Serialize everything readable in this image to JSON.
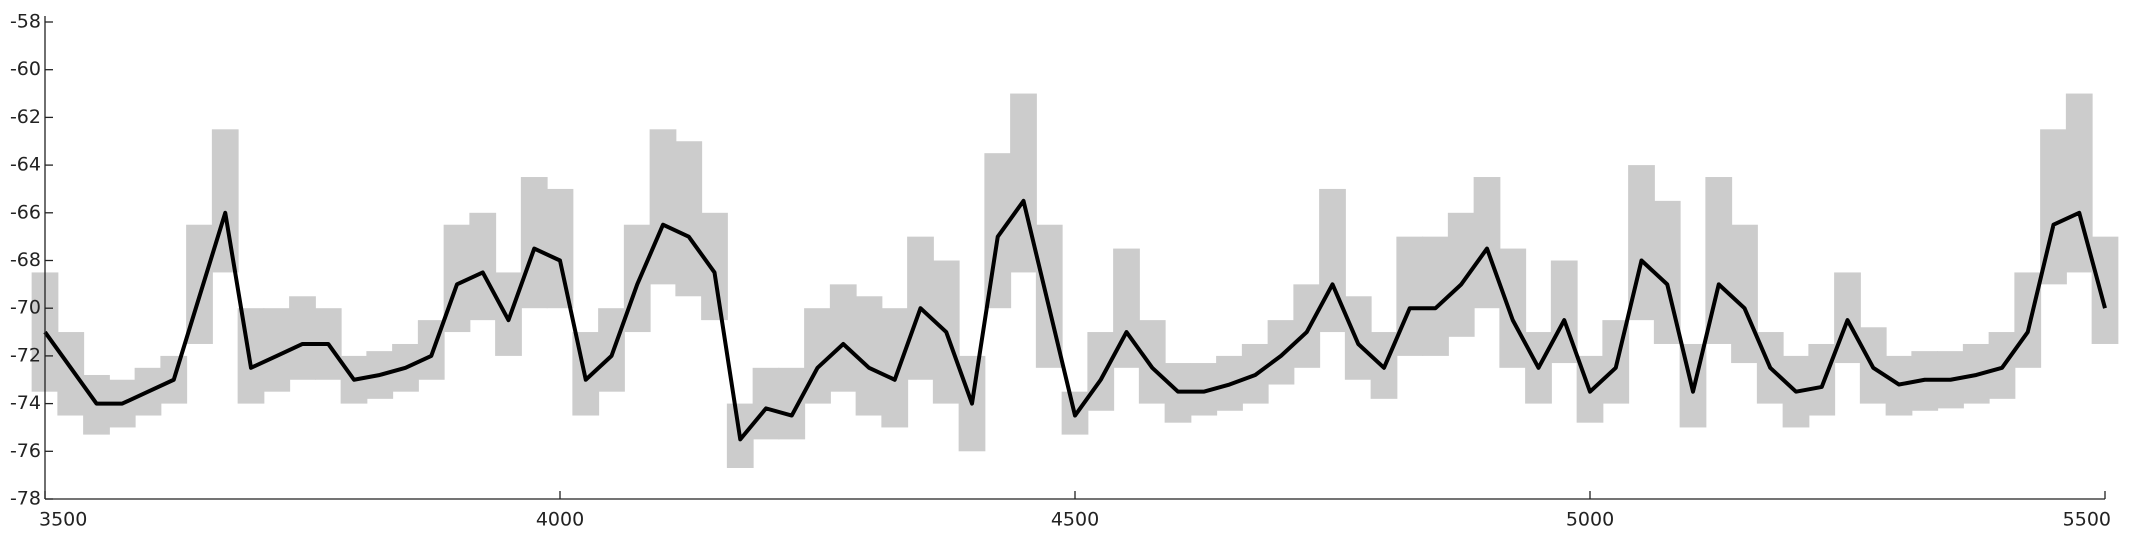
{
  "chart_data": {
    "type": "line",
    "x": [
      3500,
      3525,
      3550,
      3575,
      3600,
      3625,
      3650,
      3675,
      3700,
      3725,
      3750,
      3775,
      3800,
      3825,
      3850,
      3875,
      3900,
      3925,
      3950,
      3975,
      4000,
      4025,
      4050,
      4075,
      4100,
      4125,
      4150,
      4175,
      4200,
      4225,
      4250,
      4275,
      4300,
      4325,
      4350,
      4375,
      4400,
      4425,
      4450,
      4475,
      4500,
      4525,
      4550,
      4575,
      4600,
      4625,
      4650,
      4675,
      4700,
      4725,
      4750,
      4775,
      4800,
      4825,
      4850,
      4875,
      4900,
      4925,
      4950,
      4975,
      5000,
      5025,
      5050,
      5075,
      5100,
      5125,
      5150,
      5175,
      5200,
      5225,
      5250,
      5275,
      5300,
      5325,
      5350,
      5375,
      5400,
      5425,
      5450,
      5475,
      5500
    ],
    "line": {
      "color": "#000000",
      "values": [
        -71,
        -72.5,
        -74,
        -74,
        -73.5,
        -73,
        -69.5,
        -66,
        -72.5,
        -72,
        -71.5,
        -71.5,
        -73,
        -72.8,
        -72.5,
        -72,
        -69,
        -68.5,
        -70.5,
        -67.5,
        -68,
        -73,
        -72,
        -69,
        -66.5,
        -67,
        -68.5,
        -75.5,
        -74.2,
        -74.5,
        -72.5,
        -71.5,
        -72.5,
        -73,
        -70,
        -71,
        -74,
        -67,
        -65.5,
        -70,
        -74.5,
        -73,
        -71,
        -72.5,
        -73.5,
        -73.5,
        -73.2,
        -72.8,
        -72,
        -71,
        -69,
        -71.5,
        -72.5,
        -70,
        -70,
        -69,
        -67.5,
        -70.5,
        -72.5,
        -70.5,
        -73.5,
        -72.5,
        -68,
        -69,
        -73.5,
        -69,
        -70,
        -72.5,
        -73.5,
        -73.3,
        -70.5,
        -72.5,
        -73.2,
        -73,
        -73,
        -72.8,
        -72.5,
        -71,
        -66.5,
        -66,
        -70
      ]
    },
    "band": {
      "color": "#cccccc",
      "lower": [
        -73.5,
        -74.5,
        -75.3,
        -75,
        -74.5,
        -74,
        -71.5,
        -68.5,
        -74,
        -73.5,
        -73,
        -73,
        -74,
        -73.8,
        -73.5,
        -73,
        -71,
        -70.5,
        -72,
        -70,
        -70,
        -74.5,
        -73.5,
        -71,
        -69,
        -69.5,
        -70.5,
        -76.7,
        -75.5,
        -75.5,
        -74,
        -73.5,
        -74.5,
        -75,
        -73,
        -74,
        -76,
        -70,
        -68.5,
        -72.5,
        -75.3,
        -74.3,
        -72.5,
        -74,
        -74.8,
        -74.5,
        -74.3,
        -74,
        -73.2,
        -72.5,
        -71,
        -73,
        -73.8,
        -72,
        -72,
        -71.2,
        -70,
        -72.5,
        -74,
        -72.3,
        -74.8,
        -74,
        -70.5,
        -71.5,
        -75,
        -71.5,
        -72.3,
        -74,
        -75,
        -74.5,
        -72.3,
        -74,
        -74.5,
        -74.3,
        -74.2,
        -74,
        -73.8,
        -72.5,
        -69,
        -68.5,
        -71.5
      ],
      "upper": [
        -68.5,
        -71,
        -72.8,
        -73,
        -72.5,
        -72,
        -66.5,
        -62.5,
        -70,
        -70,
        -69.5,
        -70,
        -72,
        -71.8,
        -71.5,
        -70.5,
        -66.5,
        -66,
        -68.5,
        -64.5,
        -65,
        -71,
        -70,
        -66.5,
        -62.5,
        -63,
        -66,
        -74,
        -72.5,
        -72.5,
        -70,
        -69,
        -69.5,
        -70,
        -67,
        -68,
        -72,
        -63.5,
        -61,
        -66.5,
        -73.5,
        -71,
        -67.5,
        -70.5,
        -72.3,
        -72.3,
        -72,
        -71.5,
        -70.5,
        -69,
        -65,
        -69.5,
        -71,
        -67,
        -67,
        -66,
        -64.5,
        -67.5,
        -71,
        -68,
        -72,
        -70.5,
        -64,
        -65.5,
        -71.5,
        -64.5,
        -66.5,
        -71,
        -72,
        -71.5,
        -68.5,
        -70.8,
        -72,
        -71.8,
        -71.8,
        -71.5,
        -71,
        -68.5,
        -62.5,
        -61,
        -67
      ]
    },
    "xlim": [
      3500,
      5500
    ],
    "xticks": [
      3500,
      4000,
      4500,
      5000,
      5500
    ],
    "ylim": [
      -78,
      -58
    ],
    "yticks": [
      -78,
      -76,
      -74,
      -72,
      -70,
      -68,
      -66,
      -64,
      -62,
      -60,
      -58
    ]
  }
}
